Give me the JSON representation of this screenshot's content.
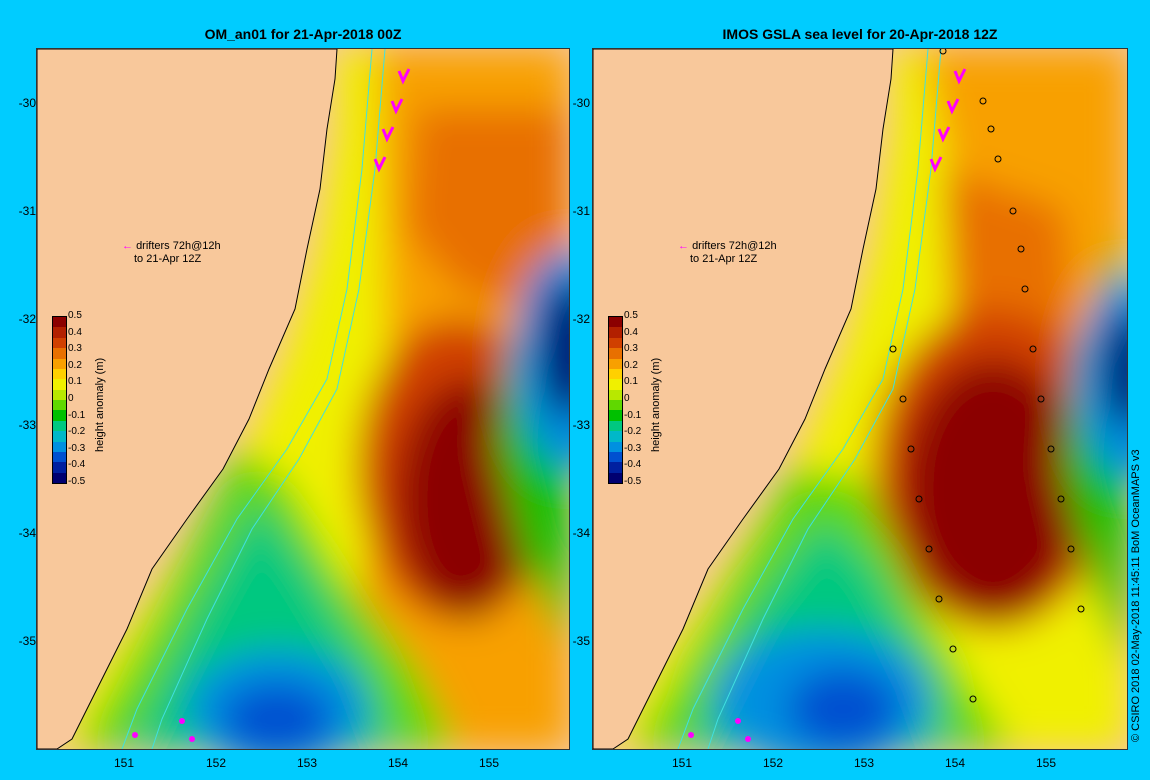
{
  "panels": [
    {
      "title": "OM_an01 for 21-Apr-2018 00Z",
      "note_line1": "drifters 72h@12h",
      "note_line2": "to 21-Apr 12Z"
    },
    {
      "title": "IMOS GSLA sea level  for 20-Apr-2018 12Z",
      "note_line1": "drifters 72h@12h",
      "note_line2": "to 21-Apr 12Z"
    }
  ],
  "axes": {
    "lat_labels": [
      "-30",
      "-31",
      "-32",
      "-33",
      "-34",
      "-35"
    ],
    "lon_labels": [
      "151",
      "152",
      "153",
      "154",
      "155"
    ]
  },
  "colorbar": {
    "title": "height anomaly (m)",
    "ticks": [
      "0.5",
      "0.4",
      "0.3",
      "0.2",
      "0.1",
      "0",
      "-0.1",
      "-0.2",
      "-0.3",
      "-0.4",
      "-0.5"
    ],
    "colors": [
      "#8b0000",
      "#b22000",
      "#d04000",
      "#e87000",
      "#f8a000",
      "#ffd000",
      "#f0f000",
      "#b8e800",
      "#60d800",
      "#00c000",
      "#00c880",
      "#00b8c8",
      "#0090e0",
      "#0050d0",
      "#0020a0",
      "#000070"
    ]
  },
  "credit": "© CSIRO 2018   02-May-2018 11:45:11 BoM OceanMAPS v3"
}
